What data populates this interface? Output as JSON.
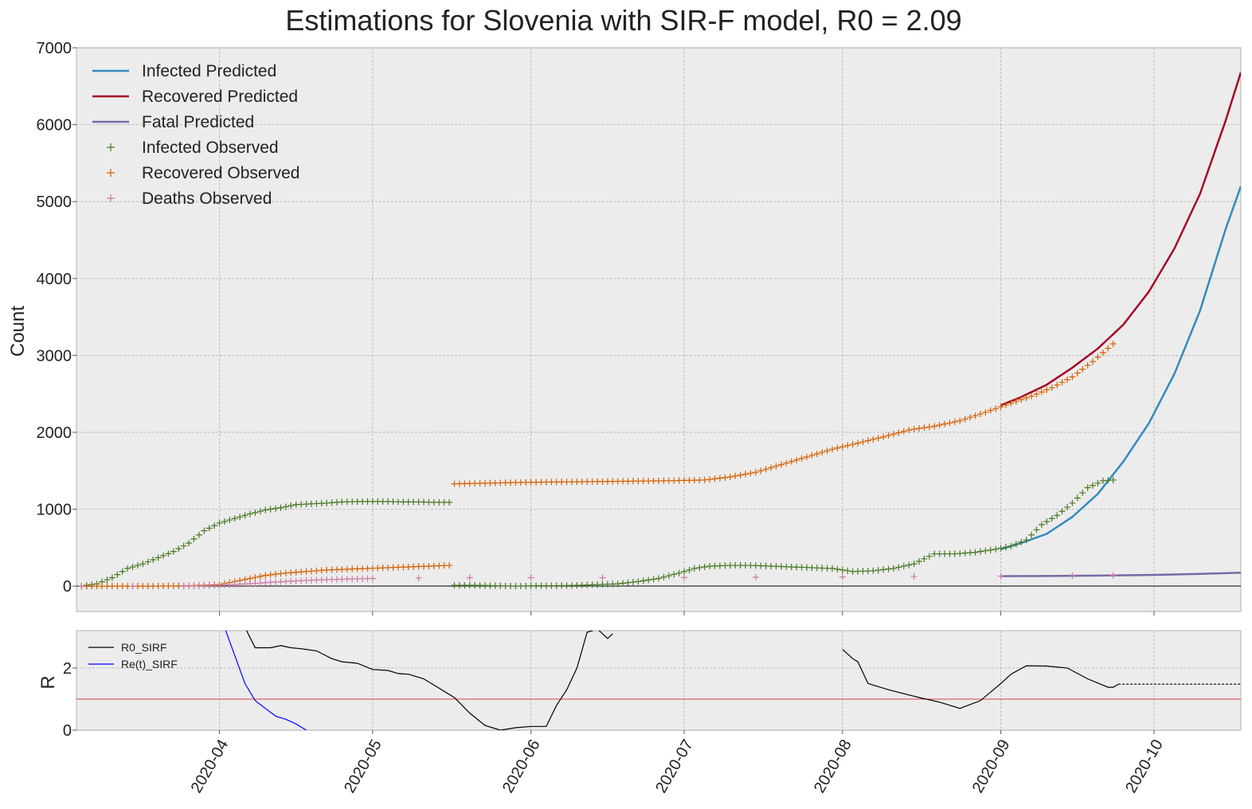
{
  "chart_data": [
    {
      "type": "line",
      "title": "Estimations for Slovenia with SIR-F model, R0 = 2.09",
      "xlabel": "",
      "ylabel": "Count",
      "xlim": [
        "2020-03-04",
        "2020-10-18"
      ],
      "ylim": [
        -330,
        7000
      ],
      "yticks": [
        0,
        1000,
        2000,
        3000,
        4000,
        5000,
        6000,
        7000
      ],
      "grid": true,
      "legend_position": "top-left",
      "series": [
        {
          "name": "Infected Predicted",
          "kind": "line",
          "color": "#348abd",
          "x": [
            "2020-09-01",
            "2020-09-05",
            "2020-09-10",
            "2020-09-15",
            "2020-09-20",
            "2020-09-25",
            "2020-09-30",
            "2020-10-05",
            "2020-10-10",
            "2020-10-15",
            "2020-10-18"
          ],
          "y": [
            480,
            560,
            680,
            900,
            1200,
            1620,
            2120,
            2760,
            3580,
            4640,
            5200
          ]
        },
        {
          "name": "Recovered Predicted",
          "kind": "line",
          "color": "#a60628",
          "x": [
            "2020-09-01",
            "2020-09-05",
            "2020-09-10",
            "2020-09-15",
            "2020-09-20",
            "2020-09-25",
            "2020-09-30",
            "2020-10-05",
            "2020-10-10",
            "2020-10-15",
            "2020-10-18"
          ],
          "y": [
            2350,
            2460,
            2620,
            2840,
            3090,
            3400,
            3830,
            4390,
            5100,
            6050,
            6680
          ]
        },
        {
          "name": "Fatal Predicted",
          "kind": "line",
          "color": "#7a68a6",
          "x": [
            "2020-09-01",
            "2020-09-10",
            "2020-09-20",
            "2020-09-30",
            "2020-10-10",
            "2020-10-18"
          ],
          "y": [
            130,
            132,
            137,
            145,
            160,
            175
          ]
        },
        {
          "name": "Infected Observed",
          "kind": "scatter",
          "marker": "+",
          "color": "#467821",
          "x": [
            "2020-03-05",
            "2020-03-08",
            "2020-03-11",
            "2020-03-14",
            "2020-03-17",
            "2020-03-20",
            "2020-03-23",
            "2020-03-26",
            "2020-03-29",
            "2020-04-01",
            "2020-04-04",
            "2020-04-07",
            "2020-04-10",
            "2020-04-13",
            "2020-04-16",
            "2020-04-19",
            "2020-04-22",
            "2020-04-25",
            "2020-04-28",
            "2020-05-01",
            "2020-05-04",
            "2020-05-07",
            "2020-05-10",
            "2020-05-13",
            "2020-05-16",
            "2020-05-17",
            "2020-05-21",
            "2020-05-25",
            "2020-05-29",
            "2020-06-02",
            "2020-06-06",
            "2020-06-10",
            "2020-06-14",
            "2020-06-18",
            "2020-06-22",
            "2020-06-26",
            "2020-06-30",
            "2020-07-03",
            "2020-07-06",
            "2020-07-10",
            "2020-07-14",
            "2020-07-18",
            "2020-07-22",
            "2020-07-26",
            "2020-07-30",
            "2020-08-03",
            "2020-08-07",
            "2020-08-11",
            "2020-08-15",
            "2020-08-19",
            "2020-08-23",
            "2020-08-27",
            "2020-08-31",
            "2020-09-03",
            "2020-09-06",
            "2020-09-09",
            "2020-09-12",
            "2020-09-15",
            "2020-09-18",
            "2020-09-21",
            "2020-09-23"
          ],
          "y": [
            0,
            30,
            110,
            230,
            290,
            370,
            450,
            560,
            720,
            820,
            880,
            940,
            990,
            1020,
            1060,
            1070,
            1080,
            1095,
            1100,
            1100,
            1100,
            1095,
            1095,
            1090,
            1090,
            10,
            10,
            5,
            0,
            5,
            5,
            10,
            20,
            30,
            60,
            100,
            170,
            230,
            260,
            270,
            270,
            260,
            250,
            240,
            230,
            190,
            200,
            230,
            290,
            420,
            420,
            440,
            480,
            520,
            600,
            800,
            920,
            1080,
            1280,
            1370,
            1380
          ]
        },
        {
          "name": "Recovered Observed",
          "kind": "scatter",
          "marker": "+",
          "color": "#d55e00",
          "x": [
            "2020-03-05",
            "2020-03-12",
            "2020-03-19",
            "2020-03-26",
            "2020-04-01",
            "2020-04-04",
            "2020-04-07",
            "2020-04-10",
            "2020-04-14",
            "2020-04-18",
            "2020-04-22",
            "2020-04-26",
            "2020-04-30",
            "2020-05-04",
            "2020-05-08",
            "2020-05-12",
            "2020-05-16",
            "2020-05-17",
            "2020-05-24",
            "2020-05-31",
            "2020-06-07",
            "2020-06-14",
            "2020-06-21",
            "2020-06-28",
            "2020-07-05",
            "2020-07-10",
            "2020-07-15",
            "2020-07-20",
            "2020-07-25",
            "2020-07-30",
            "2020-08-04",
            "2020-08-09",
            "2020-08-14",
            "2020-08-19",
            "2020-08-24",
            "2020-08-29",
            "2020-09-03",
            "2020-09-07",
            "2020-09-11",
            "2020-09-15",
            "2020-09-19",
            "2020-09-23"
          ],
          "y": [
            0,
            0,
            0,
            5,
            20,
            60,
            100,
            140,
            170,
            190,
            210,
            220,
            230,
            240,
            250,
            260,
            270,
            1330,
            1340,
            1350,
            1355,
            1360,
            1365,
            1370,
            1380,
            1420,
            1480,
            1580,
            1680,
            1780,
            1860,
            1940,
            2030,
            2080,
            2150,
            2260,
            2380,
            2470,
            2580,
            2720,
            2920,
            3150
          ]
        },
        {
          "name": "Deaths Observed",
          "kind": "scatter",
          "marker": "+",
          "color": "#cc79a7",
          "x": [
            "2020-03-05",
            "2020-03-15",
            "2020-03-25",
            "2020-04-01",
            "2020-04-05",
            "2020-04-10",
            "2020-04-15",
            "2020-04-20",
            "2020-04-25",
            "2020-05-01",
            "2020-05-10",
            "2020-05-20",
            "2020-06-01",
            "2020-06-15",
            "2020-07-01",
            "2020-07-15",
            "2020-08-01",
            "2020-08-15",
            "2020-09-01",
            "2020-09-15",
            "2020-09-23"
          ],
          "y": [
            0,
            0,
            0,
            10,
            25,
            45,
            65,
            80,
            90,
            100,
            105,
            110,
            110,
            110,
            111,
            115,
            120,
            125,
            130,
            135,
            140
          ]
        }
      ]
    },
    {
      "type": "line",
      "xlabel": "",
      "ylabel": "R",
      "xlim": [
        "2020-03-04",
        "2020-10-18"
      ],
      "ylim": [
        0,
        3.2
      ],
      "yticks": [
        0,
        2
      ],
      "xticks": [
        "2020-04",
        "2020-05",
        "2020-06",
        "2020-07",
        "2020-08",
        "2020-09",
        "2020-10"
      ],
      "reference_line": {
        "y": 1,
        "color": "#e03c3c"
      },
      "legend_position": "top-left",
      "series": [
        {
          "name": "R0_SIRF",
          "kind": "line",
          "color": "#000000",
          "x": [
            "2020-04-06",
            "2020-04-08",
            "2020-04-11",
            "2020-04-13",
            "2020-04-15",
            "2020-04-17",
            "2020-04-20",
            "2020-04-23",
            "2020-04-25",
            "2020-04-28",
            "2020-05-01",
            "2020-05-04",
            "2020-05-06",
            "2020-05-08",
            "2020-05-11",
            "2020-05-14",
            "2020-05-17",
            "2020-05-20",
            "2020-05-23",
            "2020-05-26",
            "2020-05-29",
            "2020-06-01",
            "2020-06-04",
            "2020-06-06",
            "2020-06-08",
            "2020-06-10",
            "2020-06-12",
            "2020-06-14",
            "2020-06-16",
            "2020-06-17"
          ],
          "y": [
            3.3,
            2.65,
            2.65,
            2.72,
            2.65,
            2.62,
            2.55,
            2.3,
            2.2,
            2.15,
            1.95,
            1.92,
            1.82,
            1.8,
            1.65,
            1.35,
            1.05,
            0.55,
            0.15,
            0.0,
            0.08,
            0.12,
            0.12,
            0.8,
            1.3,
            2.0,
            3.15,
            3.25,
            2.95,
            3.1
          ]
        },
        {
          "name": "",
          "kind": "line",
          "color": "#000000",
          "x": [
            "2020-08-01",
            "2020-08-03",
            "2020-08-04",
            "2020-08-06",
            "2020-08-10",
            "2020-08-16",
            "2020-08-20",
            "2020-08-24",
            "2020-08-28",
            "2020-09-01",
            "2020-09-03",
            "2020-09-06",
            "2020-09-10",
            "2020-09-14",
            "2020-09-18",
            "2020-09-22",
            "2020-09-23",
            "2020-09-24"
          ],
          "y": [
            2.6,
            2.3,
            2.2,
            1.5,
            1.3,
            1.05,
            0.9,
            0.7,
            0.95,
            1.5,
            1.8,
            2.07,
            2.06,
            2.0,
            1.65,
            1.38,
            1.38,
            1.48
          ]
        },
        {
          "name": "",
          "kind": "line",
          "dashed": true,
          "color": "#000000",
          "x": [
            "2020-09-24",
            "2020-10-18"
          ],
          "y": [
            1.48,
            1.48
          ]
        },
        {
          "name": "Re(t)_SIRF",
          "kind": "line",
          "color": "#0000ff",
          "x": [
            "2020-04-02",
            "2020-04-04",
            "2020-04-06",
            "2020-04-08",
            "2020-04-10",
            "2020-04-12",
            "2020-04-14",
            "2020-04-16",
            "2020-04-18"
          ],
          "y": [
            3.3,
            2.4,
            1.5,
            0.95,
            0.7,
            0.45,
            0.35,
            0.2,
            0.0
          ]
        }
      ]
    }
  ]
}
